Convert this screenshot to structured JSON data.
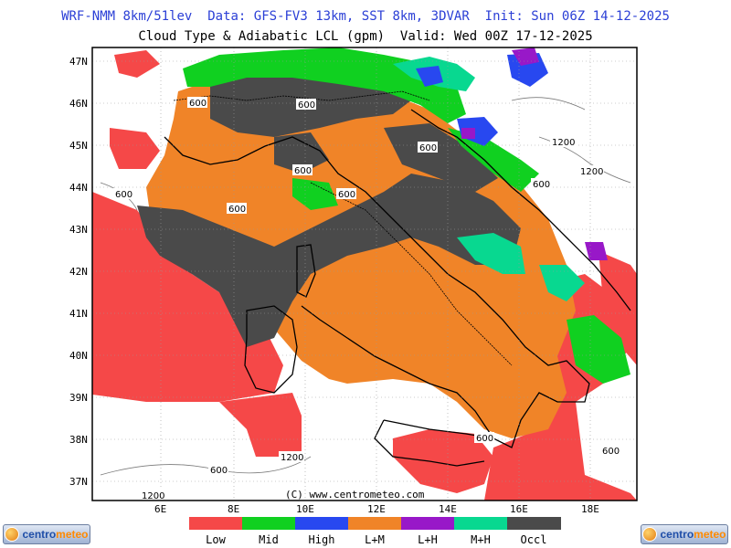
{
  "header": {
    "line1": "WRF-NMM 8km/51lev  Data: GFS-FV3 13km, SST 8km, 3DVAR  Init: Sun 06Z 14-12-2025",
    "line2": "Cloud Type & Adiabatic LCL (gpm)  Valid: Wed 00Z 17-12-2025"
  },
  "axes": {
    "lat_labels": [
      "47N",
      "46N",
      "45N",
      "44N",
      "43N",
      "42N",
      "41N",
      "40N",
      "39N",
      "38N",
      "37N"
    ],
    "lon_labels": [
      "6E",
      "8E",
      "10E",
      "12E",
      "14E",
      "16E",
      "18E"
    ]
  },
  "contour_labels": [
    "600",
    "600",
    "600",
    "600",
    "600",
    "600",
    "600",
    "1200",
    "1200",
    "600",
    "600",
    "600",
    "1200",
    "600",
    "1200"
  ],
  "watermark": "(C) www.centrometeo.com",
  "legend": {
    "items": [
      {
        "label": "Low",
        "color": "#f54848"
      },
      {
        "label": "Mid",
        "color": "#10d020"
      },
      {
        "label": "High",
        "color": "#2848f0"
      },
      {
        "label": "L+M",
        "color": "#f08428"
      },
      {
        "label": "L+H",
        "color": "#9818c8"
      },
      {
        "label": "M+H",
        "color": "#08d890"
      },
      {
        "label": "Occl",
        "color": "#4a4a4a"
      }
    ]
  },
  "logo": {
    "left_text_a": "centro",
    "left_text_b": "meteo",
    "right_text_a": "centro",
    "right_text_b": "meteo"
  },
  "colors": {
    "low": "#f54848",
    "mid": "#10d020",
    "high": "#2848f0",
    "lm": "#f08428",
    "lh": "#9818c8",
    "mh": "#08d890",
    "occl": "#4a4a4a",
    "header_blue": "#2b3fd6"
  }
}
